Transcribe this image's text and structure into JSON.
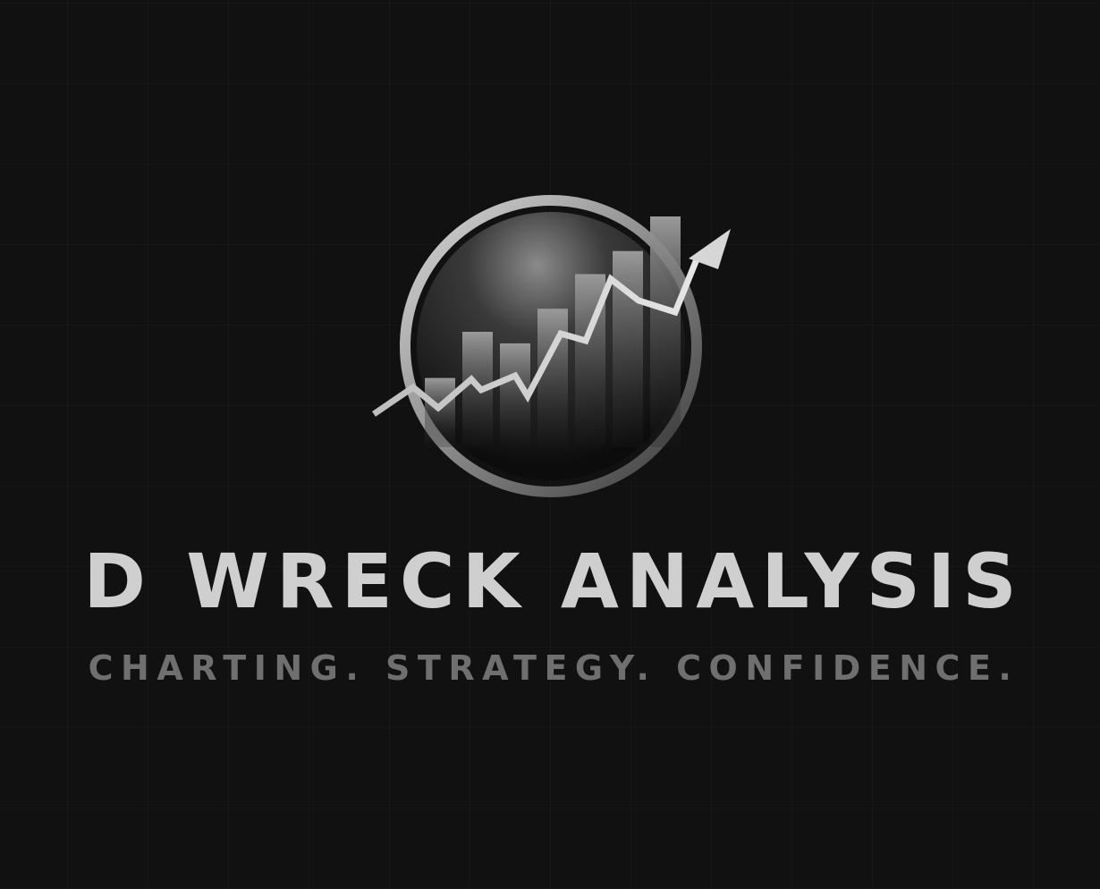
{
  "brand": {
    "name": "D WRECK ANALYSIS",
    "tagline": "CHARTING. STRATEGY. CONFIDENCE."
  },
  "emblem": {
    "icon": "rising-chart-arrow-icon",
    "bar_levels": [
      0.3,
      0.5,
      0.45,
      0.6,
      0.75,
      0.85,
      1.0
    ],
    "colors": {
      "ring": "#9a9a9a",
      "arrow": "#d6d6d6",
      "bars": "#8a8a8a"
    }
  },
  "colors": {
    "background": "#111111",
    "name_text": "#cfcfcf",
    "tagline_text": "#6f6f6f"
  }
}
